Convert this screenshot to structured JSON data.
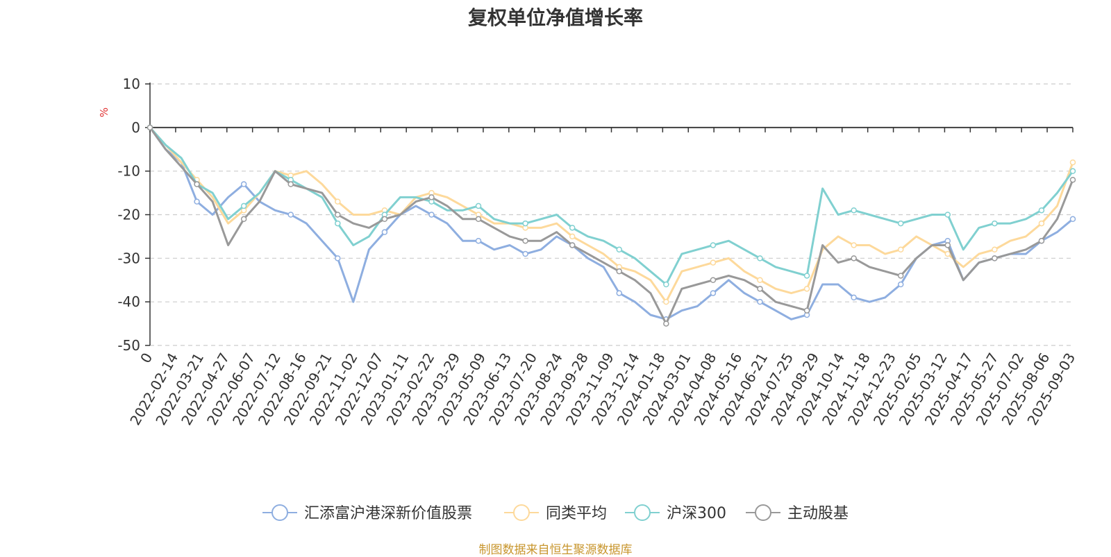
{
  "chart_data": {
    "type": "line",
    "title": "复权单位净值增长率",
    "ylabel": "%",
    "ylim": [
      -50,
      10
    ],
    "yticks": [
      10,
      0,
      -10,
      -20,
      -30,
      -40,
      -50
    ],
    "x_tick_labels": [
      "0",
      "2022-02-14",
      "2022-03-21",
      "2022-04-27",
      "2022-06-07",
      "2022-07-12",
      "2022-08-16",
      "2022-09-21",
      "2022-11-02",
      "2022-12-07",
      "2023-01-11",
      "2023-02-22",
      "2023-03-29",
      "2023-05-09",
      "2023-06-13",
      "2023-07-20",
      "2023-08-24",
      "2023-09-28",
      "2023-11-09",
      "2023-12-14",
      "2024-01-18",
      "2024-03-01",
      "2024-04-08",
      "2024-05-16",
      "2024-06-21",
      "2024-07-25",
      "2024-08-29",
      "2024-10-14",
      "2024-11-18",
      "2024-12-23",
      "2025-02-05",
      "2025-03-12",
      "2025-04-17",
      "2025-05-27",
      "2025-07-02",
      "2025-08-06",
      "2025-09-03"
    ],
    "grid": "horizontal-dashed",
    "legend_position": "bottom",
    "series": [
      {
        "name": "汇添富沪港深新价值股票",
        "color": "#8eaee0",
        "values": [
          0,
          -5,
          -8,
          -17,
          -20,
          -16,
          -13,
          -17,
          -19,
          -20,
          -22,
          -26,
          -30,
          -40,
          -28,
          -24,
          -20,
          -18,
          -20,
          -22,
          -26,
          -26,
          -28,
          -27,
          -29,
          -28,
          -25,
          -27,
          -30,
          -32,
          -38,
          -40,
          -43,
          -44,
          -42,
          -41,
          -38,
          -35,
          -38,
          -40,
          -42,
          -44,
          -43,
          -36,
          -36,
          -39,
          -40,
          -39,
          -36,
          -30,
          -27,
          -26,
          -35,
          -31,
          -30,
          -29,
          -29,
          -26,
          -24,
          -21
        ]
      },
      {
        "name": "同类平均",
        "color": "#fdd99b",
        "values": [
          0,
          -4,
          -8,
          -12,
          -16,
          -22,
          -19,
          -15,
          -10,
          -11,
          -10,
          -13,
          -17,
          -20,
          -20,
          -19,
          -20,
          -16,
          -15,
          -16,
          -18,
          -20,
          -22,
          -22,
          -23,
          -23,
          -22,
          -25,
          -27,
          -29,
          -32,
          -33,
          -35,
          -40,
          -33,
          -32,
          -31,
          -30,
          -33,
          -35,
          -37,
          -38,
          -37,
          -28,
          -25,
          -27,
          -27,
          -29,
          -28,
          -25,
          -27,
          -29,
          -32,
          -29,
          -28,
          -26,
          -25,
          -22,
          -18,
          -8
        ]
      },
      {
        "name": "沪深300",
        "color": "#80d0d0",
        "values": [
          0,
          -4,
          -7,
          -13,
          -15,
          -21,
          -18,
          -15,
          -10,
          -12,
          -14,
          -16,
          -22,
          -27,
          -25,
          -20,
          -16,
          -16,
          -17,
          -19,
          -19,
          -18,
          -21,
          -22,
          -22,
          -21,
          -20,
          -23,
          -25,
          -26,
          -28,
          -30,
          -33,
          -36,
          -29,
          -28,
          -27,
          -26,
          -28,
          -30,
          -32,
          -33,
          -34,
          -14,
          -20,
          -19,
          -20,
          -21,
          -22,
          -21,
          -20,
          -20,
          -28,
          -23,
          -22,
          -22,
          -21,
          -19,
          -15,
          -10
        ]
      },
      {
        "name": "主动股基",
        "color": "#999999",
        "values": [
          0,
          -5,
          -9,
          -13,
          -17,
          -27,
          -21,
          -17,
          -10,
          -13,
          -14,
          -15,
          -20,
          -22,
          -23,
          -21,
          -20,
          -17,
          -16,
          -18,
          -21,
          -21,
          -23,
          -25,
          -26,
          -26,
          -24,
          -27,
          -29,
          -31,
          -33,
          -35,
          -38,
          -45,
          -37,
          -36,
          -35,
          -34,
          -35,
          -37,
          -40,
          -41,
          -42,
          -27,
          -31,
          -30,
          -32,
          -33,
          -34,
          -30,
          -27,
          -27,
          -35,
          -31,
          -30,
          -29,
          -28,
          -26,
          -21,
          -12
        ]
      }
    ]
  },
  "source_note": "制图数据来自恒生聚源数据库"
}
